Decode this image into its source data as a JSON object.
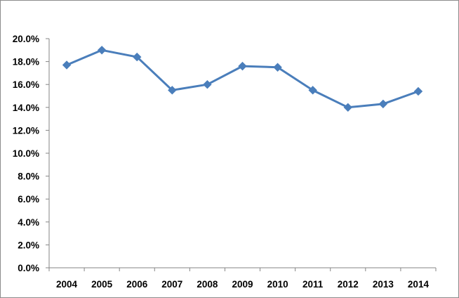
{
  "chart_data": {
    "type": "line",
    "title": "",
    "xlabel": "",
    "ylabel": "",
    "categories": [
      "2004",
      "2005",
      "2006",
      "2007",
      "2008",
      "2009",
      "2010",
      "2011",
      "2012",
      "2013",
      "2014"
    ],
    "series": [
      {
        "values": [
          17.7,
          19.0,
          18.4,
          15.5,
          16.0,
          17.6,
          17.5,
          15.5,
          14.0,
          14.3,
          15.4
        ],
        "color": "#4a7ebb",
        "marker": "diamond"
      }
    ],
    "ylim": [
      0,
      20
    ],
    "yticks": [
      0,
      2,
      4,
      6,
      8,
      10,
      12,
      14,
      16,
      18,
      20
    ],
    "ytick_labels": [
      "0.0%",
      "2.0%",
      "4.0%",
      "6.0%",
      "8.0%",
      "10.0%",
      "12.0%",
      "14.0%",
      "16.0%",
      "18.0%",
      "20.0%"
    ],
    "grid": false,
    "legend": "none"
  }
}
